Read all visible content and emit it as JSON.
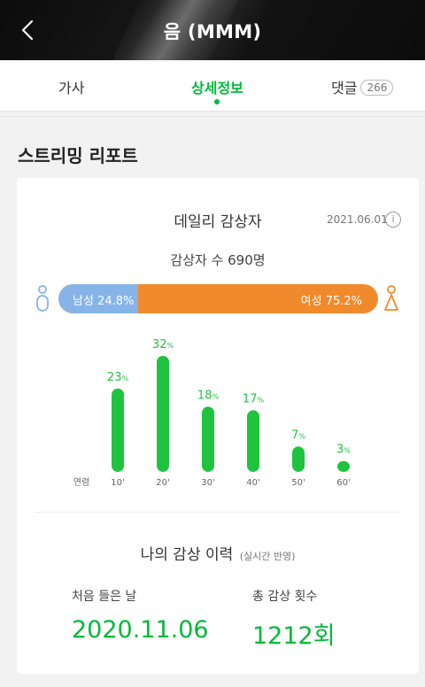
{
  "header": {
    "title": "음 (MMM)",
    "back_icon": "chevron-left-icon"
  },
  "tabs": [
    {
      "label": "가사"
    },
    {
      "label": "상세정보",
      "active": true
    },
    {
      "label": "댓글",
      "count": "266"
    }
  ],
  "section": {
    "title": "스트리밍 리포트"
  },
  "daily": {
    "title": "데일리 감상자",
    "date": "2021.06.01",
    "info_icon": "info-icon",
    "listeners_text": "감상자 수 690명",
    "gender": {
      "male_label": "남성 24.8%",
      "female_label": "여성 75.2%",
      "male_value": 24.8,
      "female_value": 75.2,
      "male_color": "#86b4e8",
      "female_color": "#f08a2c"
    }
  },
  "chart_data": {
    "type": "bar",
    "xlabel": "연령",
    "categories": [
      "10'",
      "20'",
      "30'",
      "40'",
      "50'",
      "60'"
    ],
    "values": [
      23,
      32,
      18,
      17,
      7,
      3
    ],
    "value_unit": "%",
    "color": "#1fc33f"
  },
  "history": {
    "title": "나의 감상 이력",
    "note": "(실시간 반영)",
    "first_label": "처음 들은 날",
    "first_value": "2020.11.06",
    "total_label": "총 감상 횟수",
    "total_value": "1212회"
  },
  "colors": {
    "accent": "#00b93b"
  }
}
